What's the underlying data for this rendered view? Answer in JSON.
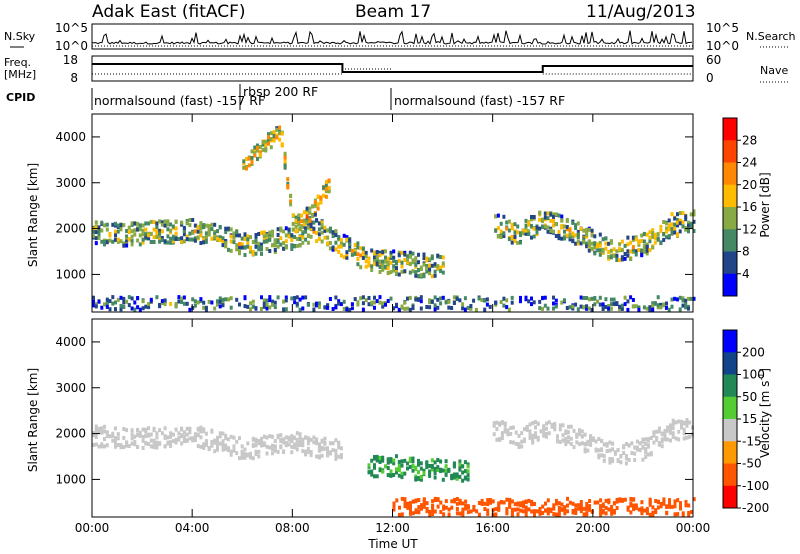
{
  "header": {
    "station": "Adak East (fitACF)",
    "beam": "Beam 17",
    "date": "11/Aug/2013"
  },
  "panels": {
    "nsky_label": "N.Sky",
    "nsky_ticks": [
      "10^5",
      "10^0"
    ],
    "nsearch_label": "N.Search",
    "freq_label_1": "Freq.",
    "freq_label_2": "[MHz]",
    "freq_ticks": [
      "18",
      "8"
    ],
    "nave_label": "Nave",
    "nave_ticks": [
      "60",
      "0"
    ],
    "cpid_label": "CPID",
    "cpid_segments": [
      "normalsound (fast) -157 RF",
      "rbsp 200 RF",
      "normalsound (fast) -157 RF"
    ]
  },
  "axes": {
    "ylabel": "Slant Range [km]",
    "xlabel": "Time UT",
    "x_ticks": [
      "00:00",
      "04:00",
      "08:00",
      "12:00",
      "16:00",
      "20:00",
      "00:00"
    ],
    "y_ticks": [
      "1000",
      "2000",
      "3000",
      "4000"
    ]
  },
  "colorbars": {
    "power": {
      "label": "Power [dB]",
      "ticks": [
        "28",
        "24",
        "20",
        "16",
        "12",
        "8",
        "4"
      ],
      "colors": [
        "#ff0000",
        "#ff4400",
        "#ff8800",
        "#ffbb00",
        "#88aa44",
        "#448866",
        "#224488",
        "#0000ff"
      ]
    },
    "velocity": {
      "label": "Velocity [m s",
      "label_sup": "-1",
      "label_end": "]",
      "ticks": [
        "200",
        "100",
        "50",
        "15",
        "-15",
        "-50",
        "-100",
        "-200"
      ],
      "colors": [
        "#0000ff",
        "#114488",
        "#228855",
        "#55cc33",
        "#c8c8c8",
        "#ff9900",
        "#ff5500",
        "#ff0000"
      ]
    }
  },
  "chart_data": [
    {
      "type": "heatmap",
      "title": "Power",
      "x_range_hours": [
        0,
        24
      ],
      "y_range_km": [
        180,
        4500
      ],
      "colorbar_range_db": [
        0,
        30
      ],
      "bands": [
        {
          "name": "main echo band",
          "x": [
            0,
            1,
            2,
            3,
            4,
            5,
            6,
            7,
            8,
            9,
            10,
            11,
            12,
            13,
            14,
            15,
            16,
            17,
            18,
            19,
            20,
            21,
            22,
            23,
            24
          ],
          "y_center": [
            1980,
            1900,
            1950,
            1980,
            2000,
            1900,
            1700,
            1750,
            1850,
            2000,
            1650,
            1350,
            1300,
            1250,
            1200,
            null,
            2150,
            1900,
            2200,
            2000,
            1750,
            1550,
            1700,
            2100,
            2200
          ],
          "width_km": 500,
          "power_db": 14
        },
        {
          "name": "upper echo band",
          "x": [
            6,
            6.5,
            7,
            7.5,
            8,
            8.5,
            9,
            9.5
          ],
          "y_center": [
            3400,
            3700,
            3950,
            4150,
            2100,
            2300,
            2600,
            3100
          ],
          "width_km": 350,
          "power_db": 18
        },
        {
          "name": "ground scatter near range",
          "x": [
            0,
            24
          ],
          "y_center": [
            400,
            400
          ],
          "width_km": 300,
          "power_db": 10
        }
      ]
    },
    {
      "type": "heatmap",
      "title": "Velocity",
      "x_range_hours": [
        0,
        24
      ],
      "y_range_km": [
        180,
        4500
      ],
      "colorbar_range_ms": [
        -200,
        200
      ],
      "bands": [
        {
          "name": "main echo band",
          "x": [
            0,
            2,
            4,
            6,
            8,
            10
          ],
          "y_center": [
            1980,
            1950,
            2000,
            1700,
            1850,
            1650
          ],
          "velocity_ms": 0
        },
        {
          "name": "green patch",
          "x": [
            11,
            12,
            13,
            14,
            15
          ],
          "y_center": [
            1300,
            1350,
            1250,
            1250,
            1200
          ],
          "velocity_ms": 40
        },
        {
          "name": "late echo band",
          "x": [
            16,
            17,
            18,
            19,
            20,
            21,
            22,
            23,
            24
          ],
          "y_center": [
            2150,
            1900,
            2200,
            2000,
            1750,
            1550,
            1700,
            2100,
            2200
          ],
          "velocity_ms": 0
        },
        {
          "name": "near range scatter",
          "x": [
            12,
            24
          ],
          "y_center": [
            400,
            400
          ],
          "velocity_ms": -60
        }
      ]
    }
  ]
}
